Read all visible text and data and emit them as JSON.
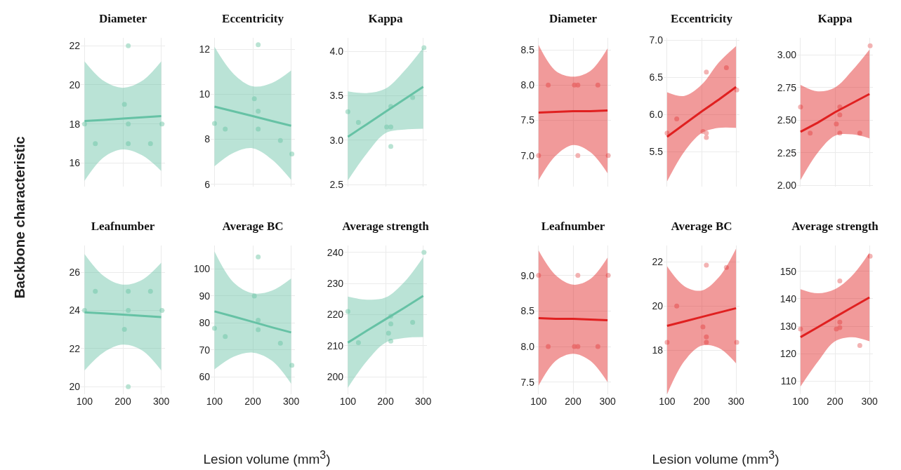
{
  "chart_data": [
    {
      "type": "line",
      "title": "Diameter",
      "ylabel": "Backbone characteristic",
      "xlim": [
        90,
        310
      ],
      "xticks": [
        100,
        200,
        300
      ],
      "ylim": [
        14.8,
        22.4
      ],
      "yticks": [
        16,
        18,
        20,
        22
      ],
      "grid": true,
      "tick_labels": "y",
      "series": [
        {
          "type": "scatter",
          "marker": "circle",
          "color": "#a8dcc8",
          "x": [
            100,
            128,
            204,
            214,
            214,
            214,
            272,
            302
          ],
          "values": [
            18,
            17,
            19,
            22,
            18,
            17,
            17,
            18
          ]
        },
        {
          "type": "line",
          "color": "#66c2a5",
          "x": [
            100,
            150,
            200,
            250,
            300
          ],
          "values": [
            18.15,
            18.21,
            18.28,
            18.34,
            18.4
          ],
          "lower": [
            15.1,
            16.3,
            16.7,
            16.4,
            15.6
          ],
          "upper": [
            21.2,
            20.2,
            19.85,
            20.2,
            21.2
          ]
        }
      ]
    },
    {
      "type": "line",
      "title": "Eccentricity",
      "xlim": [
        90,
        310
      ],
      "xticks": [
        100,
        200,
        300
      ],
      "ylim": [
        5.9,
        12.5
      ],
      "yticks": [
        6,
        8,
        10,
        12
      ],
      "grid": true,
      "tick_labels": "y",
      "series": [
        {
          "type": "scatter",
          "marker": "circle",
          "color": "#a8dcc8",
          "x": [
            100,
            128,
            204,
            214,
            214,
            214,
            272,
            302
          ],
          "values": [
            8.7,
            8.45,
            9.8,
            12.2,
            9.25,
            8.45,
            7.95,
            7.35
          ]
        },
        {
          "type": "line",
          "color": "#66c2a5",
          "x": [
            100,
            150,
            200,
            250,
            300
          ],
          "values": [
            9.45,
            9.24,
            9.03,
            8.81,
            8.6
          ],
          "lower": [
            6.8,
            7.4,
            7.6,
            7.1,
            6.2
          ],
          "upper": [
            12.1,
            10.9,
            10.35,
            10.5,
            11.05
          ]
        }
      ]
    },
    {
      "type": "line",
      "title": "Kappa",
      "xlim": [
        90,
        310
      ],
      "xticks": [
        100,
        200,
        300
      ],
      "ylim": [
        2.48,
        4.15
      ],
      "yticks": [
        {
          "value": 2.5,
          "label": "2.5"
        },
        {
          "value": 3,
          "label": "3.0"
        },
        {
          "value": 3.5,
          "label": "3.5"
        },
        {
          "value": 4,
          "label": "4.0"
        }
      ],
      "grid": true,
      "tick_labels": "y",
      "series": [
        {
          "type": "scatter",
          "marker": "circle",
          "color": "#a8dcc8",
          "x": [
            100,
            128,
            203,
            214,
            214,
            214,
            272,
            302
          ],
          "values": [
            3.32,
            3.2,
            3.15,
            3.38,
            3.15,
            2.93,
            3.48,
            4.04
          ]
        },
        {
          "type": "line",
          "color": "#66c2a5",
          "x": [
            100,
            150,
            200,
            250,
            300
          ],
          "values": [
            3.04,
            3.18,
            3.32,
            3.46,
            3.6
          ],
          "lower": [
            2.55,
            2.85,
            3.08,
            3.12,
            3.13
          ],
          "upper": [
            3.55,
            3.53,
            3.58,
            3.78,
            4.04
          ]
        }
      ]
    },
    {
      "type": "line",
      "title": "Diameter",
      "xlim": [
        90,
        310
      ],
      "xticks": [
        100,
        200,
        300
      ],
      "ylim": [
        6.56,
        8.67
      ],
      "yticks": [
        {
          "value": 7,
          "label": "7.0"
        },
        7.5,
        {
          "value": 8,
          "label": "8.0"
        },
        8.5
      ],
      "grid": true,
      "tick_labels": "y",
      "series": [
        {
          "type": "scatter",
          "marker": "circle",
          "color": "#f0a0a0",
          "x": [
            100,
            128,
            204,
            214,
            214,
            272,
            302
          ],
          "values": [
            7,
            8,
            8,
            8,
            7,
            8,
            7
          ]
        },
        {
          "type": "line",
          "color": "#e02020",
          "x": [
            100,
            150,
            200,
            250,
            300
          ],
          "values": [
            7.61,
            7.62,
            7.63,
            7.63,
            7.64
          ],
          "lower": [
            6.65,
            7.0,
            7.15,
            7.05,
            6.75
          ],
          "upper": [
            8.57,
            8.2,
            8.12,
            8.2,
            8.52
          ]
        }
      ]
    },
    {
      "type": "line",
      "title": "Eccentricity",
      "xlim": [
        90,
        310
      ],
      "xticks": [
        100,
        200,
        300
      ],
      "ylim": [
        5.03,
        7.03
      ],
      "yticks": [
        5.5,
        {
          "value": 6,
          "label": "6.0"
        },
        6.5,
        {
          "value": 7,
          "label": "7.0"
        }
      ],
      "grid": true,
      "tick_labels": "y",
      "series": [
        {
          "type": "scatter",
          "marker": "circle",
          "color": "#f0a0a0",
          "x": [
            100,
            128,
            204,
            214,
            214,
            214,
            272,
            302
          ],
          "values": [
            5.75,
            5.94,
            5.77,
            6.57,
            5.75,
            5.69,
            6.63,
            6.33
          ]
        },
        {
          "type": "line",
          "color": "#e02020",
          "x": [
            100,
            150,
            200,
            250,
            300
          ],
          "values": [
            5.7,
            5.87,
            6.04,
            6.2,
            6.37
          ],
          "lower": [
            5.1,
            5.5,
            5.75,
            5.82,
            5.82
          ],
          "upper": [
            6.3,
            6.25,
            6.4,
            6.7,
            6.92
          ]
        }
      ]
    },
    {
      "type": "line",
      "title": "Kappa",
      "xlim": [
        90,
        310
      ],
      "xticks": [
        100,
        200,
        300
      ],
      "ylim": [
        1.99,
        3.13
      ],
      "yticks": [
        {
          "value": 2,
          "label": "2.00"
        },
        2.25,
        {
          "value": 2.5,
          "label": "2.50"
        },
        2.75,
        {
          "value": 3,
          "label": "3.00"
        }
      ],
      "grid": true,
      "tick_labels": "y",
      "series": [
        {
          "type": "scatter",
          "marker": "circle",
          "color": "#f0a0a0",
          "x": [
            100,
            128,
            204,
            214,
            214,
            214,
            272,
            302
          ],
          "values": [
            2.6,
            2.4,
            2.47,
            2.6,
            2.54,
            2.4,
            2.4,
            3.07
          ]
        },
        {
          "type": "line",
          "color": "#e02020",
          "x": [
            100,
            150,
            200,
            250,
            300
          ],
          "values": [
            2.41,
            2.48,
            2.56,
            2.63,
            2.7
          ],
          "lower": [
            2.04,
            2.25,
            2.38,
            2.39,
            2.36
          ],
          "upper": [
            2.77,
            2.72,
            2.75,
            2.88,
            3.04
          ]
        }
      ]
    },
    {
      "type": "line",
      "title": "Leafnumber",
      "xlim": [
        90,
        310
      ],
      "xticks": [
        100,
        200,
        300
      ],
      "ylim": [
        19.6,
        27.4
      ],
      "yticks": [
        20,
        22,
        24,
        26
      ],
      "grid": true,
      "series": [
        {
          "type": "scatter",
          "marker": "circle",
          "color": "#a8dcc8",
          "x": [
            100,
            128,
            204,
            214,
            214,
            214,
            272,
            302
          ],
          "values": [
            24,
            25,
            23,
            25,
            24,
            20,
            25,
            24
          ]
        },
        {
          "type": "line",
          "color": "#66c2a5",
          "x": [
            100,
            150,
            200,
            250,
            300
          ],
          "values": [
            23.9,
            23.84,
            23.78,
            23.71,
            23.65
          ],
          "lower": [
            20.85,
            21.8,
            22.2,
            21.9,
            20.85
          ],
          "upper": [
            26.95,
            25.8,
            25.35,
            25.6,
            26.5
          ]
        }
      ]
    },
    {
      "type": "line",
      "title": "Average BC",
      "xlabel": "Lesion volume (mm$^{3}$)",
      "xlim": [
        90,
        310
      ],
      "xticks": [
        100,
        200,
        300
      ],
      "ylim": [
        53.6,
        108.7
      ],
      "yticks": [
        60,
        70,
        80,
        90,
        100
      ],
      "grid": true,
      "series": [
        {
          "type": "scatter",
          "marker": "circle",
          "color": "#a8dcc8",
          "x": [
            100,
            128,
            204,
            214,
            214,
            214,
            272,
            302
          ],
          "values": [
            78,
            75,
            90,
            104.5,
            81,
            77.5,
            72.5,
            64.3
          ]
        },
        {
          "type": "line",
          "color": "#66c2a5",
          "x": [
            100,
            150,
            200,
            250,
            300
          ],
          "values": [
            84.3,
            82.4,
            80.4,
            78.4,
            76.5
          ],
          "lower": [
            62.8,
            67.5,
            69,
            66,
            57.5
          ],
          "upper": [
            106.5,
            95,
            91,
            92,
            96.5
          ]
        }
      ]
    },
    {
      "type": "line",
      "title": "Average strength",
      "xlim": [
        90,
        310
      ],
      "xticks": [
        100,
        200,
        300
      ],
      "ylim": [
        194.4,
        242.2
      ],
      "yticks": [
        200,
        210,
        220,
        230,
        240
      ],
      "grid": true,
      "series": [
        {
          "type": "scatter",
          "marker": "circle",
          "color": "#a8dcc8",
          "x": [
            100,
            128,
            208,
            214,
            214,
            214,
            272,
            302
          ],
          "values": [
            221,
            211,
            214,
            217,
            211.5,
            219.5,
            217.5,
            240
          ]
        },
        {
          "type": "line",
          "color": "#66c2a5",
          "x": [
            100,
            150,
            200,
            250,
            300
          ],
          "values": [
            211,
            214.8,
            218.5,
            222.2,
            226
          ],
          "lower": [
            196.5,
            205,
            211,
            212.5,
            212.8
          ],
          "upper": [
            225.8,
            224.8,
            225.5,
            230.5,
            238.5
          ]
        }
      ]
    },
    {
      "type": "line",
      "title": "Leafnumber",
      "xlim": [
        90,
        310
      ],
      "xticks": [
        100,
        200,
        300
      ],
      "ylim": [
        7.33,
        9.42
      ],
      "yticks": [
        7.5,
        {
          "value": 8,
          "label": "8.0"
        },
        8.5,
        {
          "value": 9,
          "label": "9.0"
        }
      ],
      "grid": true,
      "series": [
        {
          "type": "scatter",
          "marker": "circle",
          "color": "#f0a0a0",
          "x": [
            100,
            128,
            204,
            214,
            214,
            272,
            302
          ],
          "values": [
            9,
            8,
            8,
            9,
            8,
            8,
            9
          ]
        },
        {
          "type": "line",
          "color": "#e02020",
          "x": [
            100,
            150,
            200,
            250,
            300
          ],
          "values": [
            8.4,
            8.39,
            8.39,
            8.38,
            8.37
          ],
          "lower": [
            7.45,
            7.8,
            7.9,
            7.8,
            7.5
          ],
          "upper": [
            9.35,
            9.0,
            8.87,
            8.95,
            9.25
          ]
        }
      ]
    },
    {
      "type": "line",
      "title": "Average BC",
      "xlabel": "Lesion volume (mm$^{3}$)",
      "xlim": [
        90,
        310
      ],
      "xticks": [
        100,
        200,
        300
      ],
      "ylim": [
        16.0,
        22.74
      ],
      "yticks": [
        18,
        20,
        22
      ],
      "grid": true,
      "series": [
        {
          "type": "scatter",
          "marker": "circle",
          "color": "#f0a0a0",
          "x": [
            100,
            128,
            204,
            214,
            214,
            214,
            272,
            302
          ],
          "values": [
            18.35,
            20,
            19.05,
            21.85,
            18.6,
            18.35,
            21.75,
            18.35
          ]
        },
        {
          "type": "line",
          "color": "#e02020",
          "x": [
            100,
            150,
            200,
            250,
            300
          ],
          "values": [
            19.1,
            19.3,
            19.5,
            19.7,
            19.9
          ],
          "lower": [
            16.0,
            17.5,
            18.2,
            18.1,
            17.4
          ],
          "upper": [
            21.8,
            20.9,
            20.7,
            21.3,
            22.6
          ]
        }
      ]
    },
    {
      "type": "line",
      "title": "Average strength",
      "xlim": [
        90,
        310
      ],
      "xticks": [
        100,
        200,
        300
      ],
      "ylim": [
        105.2,
        159.4
      ],
      "yticks": [
        110,
        120,
        130,
        140,
        150
      ],
      "grid": true,
      "series": [
        {
          "type": "scatter",
          "marker": "circle",
          "color": "#f0a0a0",
          "x": [
            100,
            204,
            214,
            214,
            214,
            272,
            302
          ],
          "values": [
            129,
            129,
            131.5,
            129.5,
            146.5,
            123,
            155.5
          ]
        },
        {
          "type": "line",
          "color": "#e02020",
          "x": [
            100,
            150,
            200,
            250,
            300
          ],
          "values": [
            126,
            129.6,
            133.3,
            136.9,
            140.5
          ],
          "lower": [
            108,
            117,
            124.5,
            126,
            124.5
          ],
          "upper": [
            143.5,
            142,
            143.5,
            148.5,
            156.8
          ]
        }
      ]
    }
  ]
}
